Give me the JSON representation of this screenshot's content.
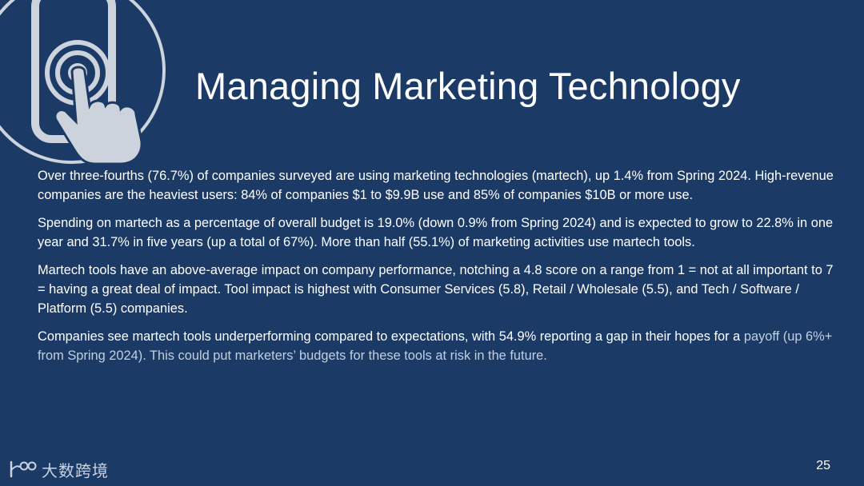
{
  "slide": {
    "title": "Managing Marketing Technology",
    "paragraphs": [
      {
        "text": "Over three-fourths (76.7%) of companies surveyed are using marketing technologies (martech), up 1.4% from Spring 2024. High-revenue companies are the heaviest users: 84% of companies $1 to $9.9B use and 85% of companies $10B or more use."
      },
      {
        "text": "Spending on martech as a percentage of overall budget is 19.0% (down 0.9% from Spring 2024) and is expected to grow to 22.8% in one year and 31.7% in five years (up a total of 67%). More than half (55.1%) of marketing activities use martech tools."
      },
      {
        "text": "Martech tools have an above-average impact on company performance, notching a 4.8 score on a range from 1 = not at all important to 7 = having a great deal of impact. Tool impact is highest with Consumer Services (5.8), Retail / Wholesale (5.5), and Tech / Software / Platform (5.5) companies."
      },
      {
        "text": "Companies see martech tools underperforming compared to expectations, with 54.9% reporting a gap in their hopes for a",
        "text_dim": "payoff (up 6%+ from Spring 2024). This could put marketers’ budgets for these tools at risk in the future."
      }
    ],
    "page_number": "25"
  },
  "watermark": {
    "mark": "1 00",
    "text": "大数跨境"
  },
  "icons": {
    "hero": "touch-phone-icon"
  },
  "colors": {
    "background": "#1b3a66",
    "icon_fill": "#cdd3dc",
    "text": "#ffffff"
  }
}
